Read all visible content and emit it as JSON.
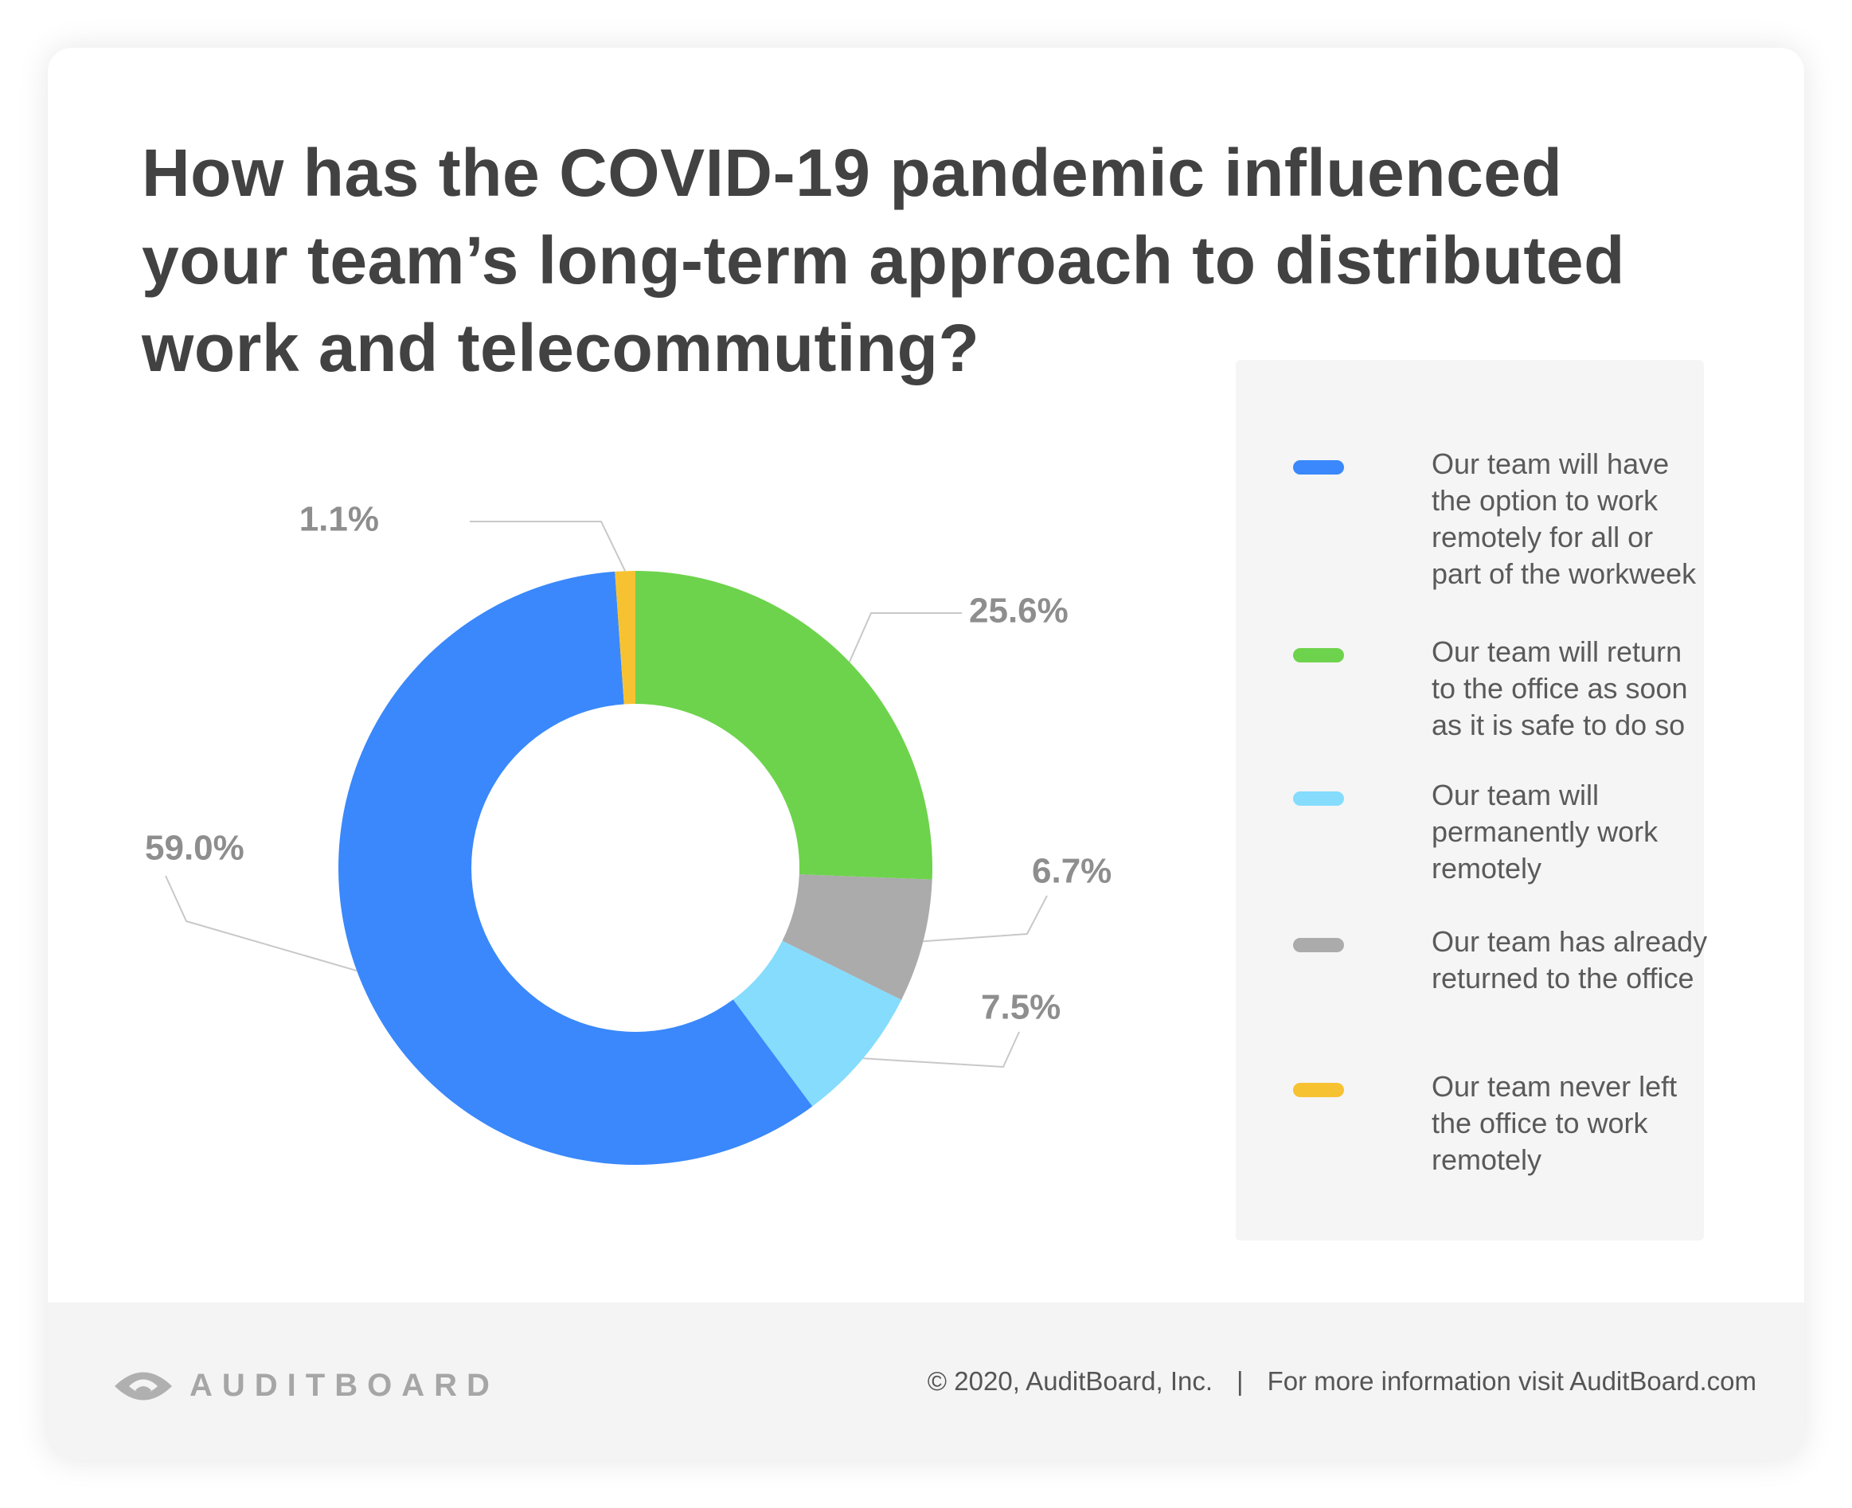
{
  "title": "How has the COVID-19 pandemic influenced your team’s long-term approach to distributed work and telecommuting?",
  "chart_data": {
    "type": "pie",
    "variant": "donut",
    "title": "How has the COVID-19 pandemic influenced your team’s long-term approach to distributed work and telecommuting?",
    "categories": [
      "Our team will have the option to work remotely for all or part of the workweek",
      "Our team will return to the office as soon as it is safe to do so",
      "Our team will permanently work remotely",
      "Our team has already returned to the office",
      "Our team never left the office to work remotely"
    ],
    "values": [
      59.0,
      25.6,
      7.5,
      6.7,
      1.1
    ],
    "labels": [
      "59.0%",
      "25.6%",
      "7.5%",
      "6.7%",
      "1.1%"
    ],
    "colors": [
      "#3a88fb",
      "#6dd34c",
      "#85dcfd",
      "#ababab",
      "#f7c232"
    ],
    "slice_order": [
      1,
      3,
      2,
      0,
      4
    ],
    "legend_position": "right",
    "unit": "%"
  },
  "footer": {
    "logo_text": "AUDITBOARD",
    "copyright": "© 2020, AuditBoard, Inc.",
    "separator": "|",
    "more_info": "For more information visit AuditBoard.com"
  }
}
